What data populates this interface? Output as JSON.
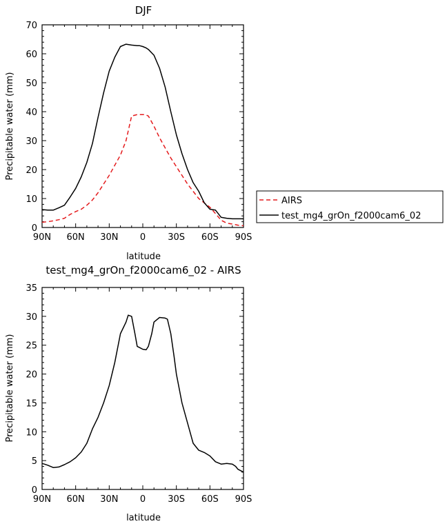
{
  "chart_data": [
    {
      "type": "line",
      "title": "DJF",
      "xlabel": "latitude",
      "ylabel": "Precipitable water (mm)",
      "ylim": [
        0,
        70
      ],
      "xlim": [
        -90,
        90
      ],
      "x_tick_labels": [
        "90N",
        "60N",
        "30N",
        "0",
        "30S",
        "60S",
        "90S"
      ],
      "y_tick_labels": [
        "0",
        "10",
        "20",
        "30",
        "40",
        "50",
        "60",
        "70"
      ],
      "legend": "right",
      "series": [
        {
          "name": "AIRS",
          "color": "#e41a1c",
          "dash": "dashed",
          "x": [
            -90,
            -85,
            -80,
            -75,
            -70,
            -65,
            -60,
            -55,
            -50,
            -45,
            -40,
            -35,
            -30,
            -25,
            -20,
            -15,
            -10,
            -5,
            -2,
            0,
            2,
            5,
            10,
            15,
            20,
            25,
            30,
            35,
            40,
            45,
            50,
            55,
            60,
            65,
            70,
            75,
            80,
            85,
            90
          ],
          "y": [
            1.8,
            2.0,
            2.3,
            2.7,
            3.2,
            4.5,
            5.5,
            6.3,
            7.7,
            9.5,
            12,
            15,
            18,
            21.5,
            25,
            30,
            38.5,
            39,
            39,
            39,
            39,
            38.5,
            35,
            31,
            27.5,
            24,
            21,
            18,
            15,
            12.5,
            10,
            8.5,
            7,
            4.8,
            2.5,
            1.5,
            1.2,
            0.8,
            0.6
          ]
        },
        {
          "name": "test_mg4_grOn_f2000cam6_02",
          "color": "#000000",
          "dash": "solid",
          "x": [
            -90,
            -85,
            -80,
            -75,
            -70,
            -65,
            -60,
            -55,
            -50,
            -45,
            -40,
            -35,
            -30,
            -25,
            -20,
            -15,
            -10,
            -5,
            -3,
            0,
            3,
            5,
            10,
            15,
            20,
            25,
            30,
            35,
            40,
            45,
            50,
            55,
            60,
            65,
            70,
            75,
            80,
            85,
            90
          ],
          "y": [
            6.2,
            6.0,
            6.0,
            6.8,
            7.7,
            10.5,
            13.5,
            17.5,
            22.5,
            29,
            38,
            46.5,
            54,
            58.8,
            62.5,
            63.3,
            63,
            62.8,
            62.8,
            62.5,
            62,
            61.5,
            59.5,
            55,
            48.5,
            40,
            32,
            25.5,
            20,
            15.5,
            12.5,
            8.5,
            6.3,
            6.0,
            3.5,
            3.2,
            3.0,
            3.0,
            3.0
          ]
        }
      ]
    },
    {
      "type": "line",
      "title": "test_mg4_grOn_f2000cam6_02 - AIRS",
      "xlabel": "latitude",
      "ylabel": "Precipitable water (mm)",
      "ylim": [
        0,
        35
      ],
      "xlim": [
        -90,
        90
      ],
      "x_tick_labels": [
        "90N",
        "60N",
        "30N",
        "0",
        "30S",
        "60S",
        "90S"
      ],
      "y_tick_labels": [
        "0",
        "5",
        "10",
        "15",
        "20",
        "25",
        "30",
        "35"
      ],
      "series": [
        {
          "color": "#000000",
          "dash": "solid",
          "x": [
            -90,
            -88,
            -85,
            -80,
            -75,
            -70,
            -65,
            -60,
            -55,
            -50,
            -45,
            -40,
            -35,
            -30,
            -25,
            -20,
            -15,
            -13,
            -10,
            -7,
            -5,
            -2,
            0,
            3,
            5,
            8,
            10,
            15,
            20,
            22,
            25,
            28,
            30,
            35,
            40,
            45,
            50,
            55,
            60,
            65,
            70,
            75,
            80,
            83,
            85,
            88,
            90
          ],
          "y": [
            4.5,
            4.4,
            4.2,
            3.8,
            3.9,
            4.3,
            4.8,
            5.5,
            6.5,
            8,
            10.5,
            12.5,
            15,
            18,
            22,
            27,
            29,
            30.2,
            30,
            27,
            24.8,
            24.5,
            24.3,
            24.2,
            24.8,
            27,
            29,
            29.8,
            29.7,
            29.5,
            27,
            23,
            20,
            15,
            11.5,
            8,
            6.8,
            6.4,
            5.8,
            4.8,
            4.4,
            4.5,
            4.4,
            4,
            3.5,
            3.2,
            3.0
          ]
        }
      ]
    }
  ]
}
